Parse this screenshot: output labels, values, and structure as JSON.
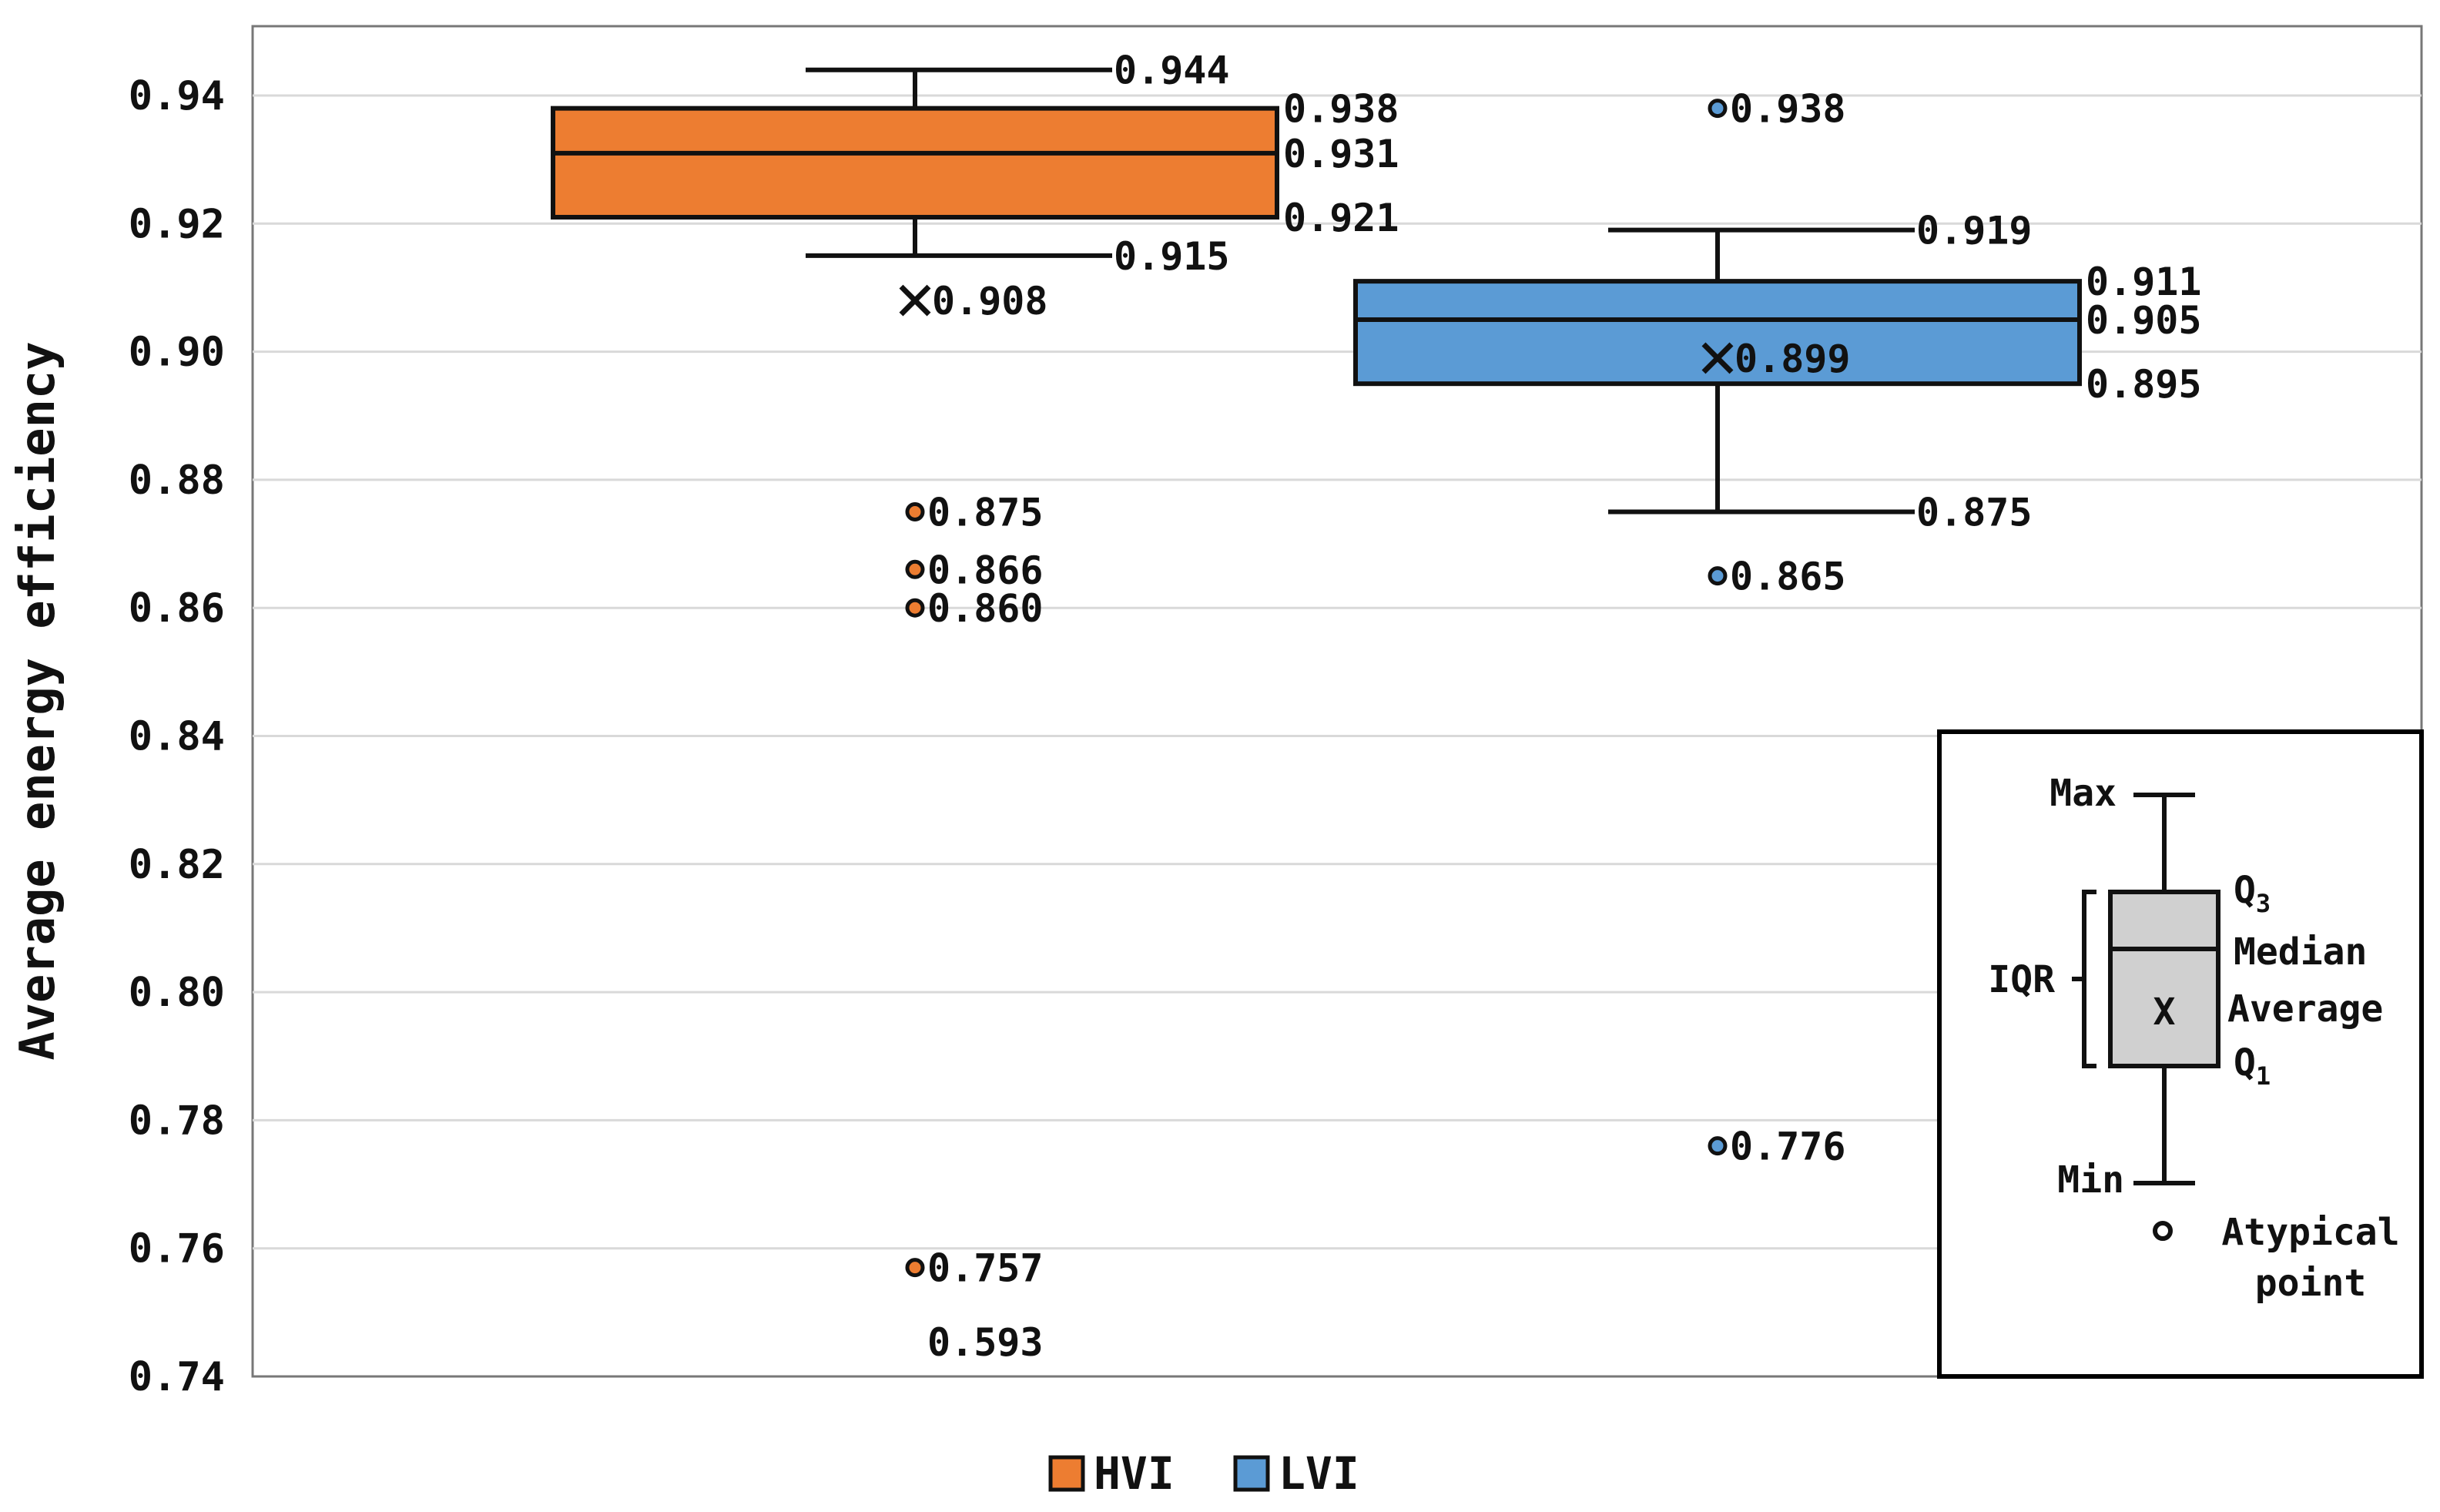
{
  "chart_data": {
    "type": "box",
    "title": "",
    "xlabel": "",
    "ylabel": "Average energy efficiency",
    "ylim": [
      0.74,
      0.95
    ],
    "yticks": [
      "0.74",
      "0.76",
      "0.78",
      "0.80",
      "0.82",
      "0.84",
      "0.86",
      "0.88",
      "0.90",
      "0.92",
      "0.94"
    ],
    "grid": true,
    "legend_position": "bottom-center",
    "series": [
      {
        "name": "HVI",
        "color": "#ED7D31",
        "max": 0.944,
        "max_label": "0.944",
        "q3": 0.938,
        "q3_label": "0.938",
        "median": 0.931,
        "median_label": "0.931",
        "q1": 0.921,
        "q1_label": "0.921",
        "min": 0.915,
        "min_label": "0.915",
        "mean": 0.908,
        "mean_label": "0.908",
        "outliers": [
          {
            "value": 0.875,
            "label": "0.875"
          },
          {
            "value": 0.866,
            "label": "0.866"
          },
          {
            "value": 0.86,
            "label": "0.860"
          },
          {
            "value": 0.757,
            "label": "0.757"
          }
        ],
        "off_scale_outlier_label": "0.593"
      },
      {
        "name": "LVI",
        "color": "#5B9BD5",
        "max": 0.919,
        "max_label": "0.919",
        "q3": 0.911,
        "q3_label": "0.911",
        "median": 0.905,
        "median_label": "0.905",
        "q1": 0.895,
        "q1_label": "0.895",
        "min": 0.875,
        "min_label": "0.875",
        "mean": 0.899,
        "mean_label": "0.899",
        "outliers": [
          {
            "value": 0.938,
            "label": "0.938"
          },
          {
            "value": 0.865,
            "label": "0.865"
          },
          {
            "value": 0.776,
            "label": "0.776"
          }
        ]
      }
    ],
    "key_box": {
      "max": "Max",
      "q3": "Q",
      "q3_sub": "3",
      "median": "Median",
      "average": "Average",
      "q1": "Q",
      "q1_sub": "1",
      "min": "Min",
      "iqr": "IQR",
      "mean_mark": "X",
      "atypical_line1": "Atypical",
      "atypical_line2": "point"
    }
  }
}
